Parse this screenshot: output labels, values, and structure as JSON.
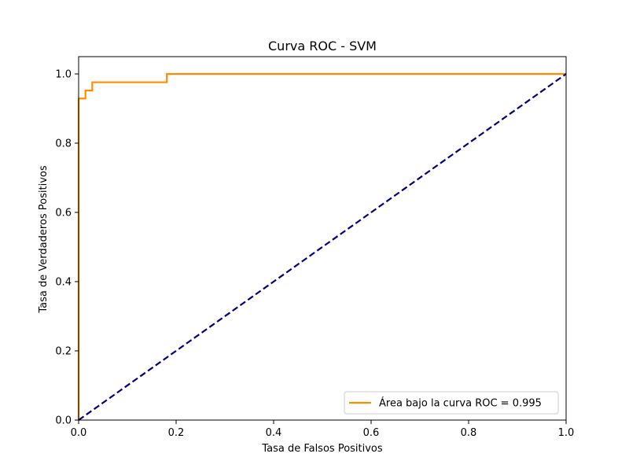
{
  "chart_data": {
    "type": "line",
    "title": "Curva ROC - SVM",
    "xlabel": "Tasa de Falsos Positivos",
    "ylabel": "Tasa de Verdaderos Positivos",
    "xlim": [
      0.0,
      1.0
    ],
    "ylim": [
      0.0,
      1.05
    ],
    "xticks": [
      "0.0",
      "0.2",
      "0.4",
      "0.6",
      "0.8",
      "1.0"
    ],
    "yticks": [
      "0.0",
      "0.2",
      "0.4",
      "0.6",
      "0.8",
      "1.0"
    ],
    "grid": false,
    "legend_position": "lower-right",
    "series": [
      {
        "name": "Área bajo la curva ROC = 0.995",
        "color": "#ff8c00",
        "style": "solid",
        "x": [
          0.0,
          0.0,
          0.0,
          0.014,
          0.014,
          0.028,
          0.028,
          0.181,
          0.181,
          1.0
        ],
        "y": [
          0.0,
          0.929,
          0.929,
          0.929,
          0.952,
          0.952,
          0.976,
          0.976,
          1.0,
          1.0
        ]
      },
      {
        "color": "#000080",
        "style": "dashed",
        "x": [
          0.0,
          1.0
        ],
        "y": [
          0.0,
          1.0
        ]
      }
    ]
  }
}
